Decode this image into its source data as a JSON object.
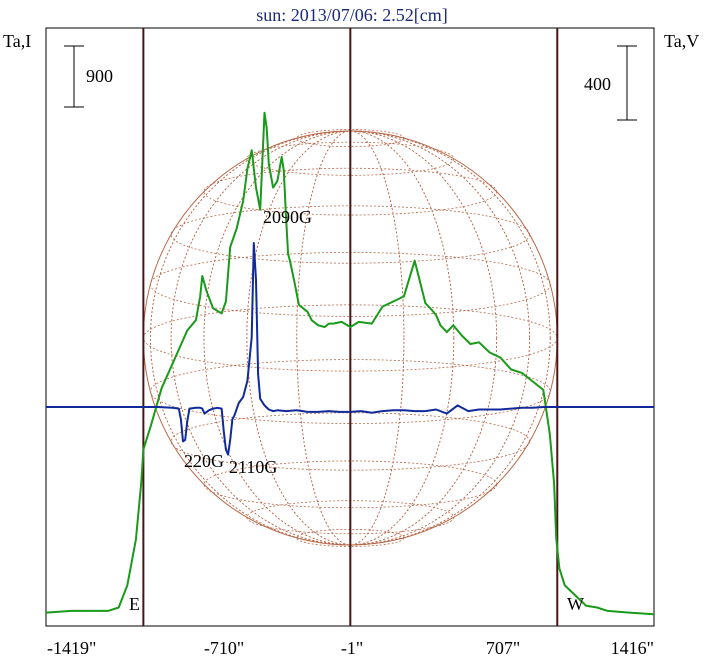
{
  "chart_data": {
    "type": "line",
    "title": "sun: 2013/07/06: 2.52[cm]",
    "left_axis_label": "Ta,I",
    "right_axis_label": "Ta,V",
    "x_ticks": [
      "-1419\"",
      "-710\"",
      "-1\"",
      "707\"",
      "1416\""
    ],
    "xlim": [
      -1419,
      1416
    ],
    "limb_markers": {
      "east": "E",
      "west": "W",
      "limb_positions": [
        -965,
        965
      ]
    },
    "scale_bars": {
      "intensity": "900",
      "polarization": "400"
    },
    "annotations": [
      "2090G",
      "2110G",
      "220G"
    ],
    "colors": {
      "intensity": "#1a9a1a",
      "polarization": "#102a9a",
      "disk": "#b8694a",
      "cursor_lines": "#4a1414",
      "title": "#1b2a78"
    },
    "series": [
      {
        "name": "Ta,I",
        "x": [
          -1419,
          -1300,
          -1200,
          -1130,
          -1080,
          -1040,
          -1000,
          -975,
          -965,
          -930,
          -880,
          -820,
          -760,
          -720,
          -700,
          -690,
          -670,
          -640,
          -600,
          -580,
          -560,
          -530,
          -500,
          -480,
          -460,
          -440,
          -420,
          -400,
          -390,
          -380,
          -360,
          -340,
          -320,
          -310,
          -300,
          -290,
          -280,
          -260,
          -240,
          -220,
          -200,
          -180,
          -150,
          -120,
          -100,
          -80,
          -40,
          0,
          40,
          100,
          150,
          200,
          250,
          300,
          350,
          380,
          400,
          420,
          450,
          480,
          520,
          560,
          600,
          650,
          700,
          750,
          800,
          850,
          900,
          930,
          950,
          960,
          975,
          1000,
          1050,
          1100,
          1150,
          1200,
          1300,
          1416
        ],
        "values": [
          0.02,
          0.03,
          0.03,
          0.03,
          0.05,
          0.18,
          0.45,
          0.78,
          0.98,
          1.12,
          1.34,
          1.51,
          1.68,
          1.74,
          1.88,
          2.0,
          1.91,
          1.81,
          1.78,
          1.85,
          2.17,
          2.28,
          2.44,
          2.63,
          2.74,
          2.52,
          2.39,
          2.96,
          2.87,
          2.66,
          2.52,
          2.56,
          2.7,
          2.62,
          2.35,
          2.13,
          2.08,
          1.96,
          1.83,
          1.81,
          1.79,
          1.74,
          1.71,
          1.7,
          1.72,
          1.72,
          1.73,
          1.7,
          1.73,
          1.72,
          1.82,
          1.85,
          1.88,
          2.09,
          1.84,
          1.8,
          1.77,
          1.71,
          1.67,
          1.71,
          1.65,
          1.6,
          1.61,
          1.55,
          1.52,
          1.45,
          1.43,
          1.38,
          1.33,
          1.07,
          0.78,
          0.46,
          0.28,
          0.18,
          0.12,
          0.06,
          0.05,
          0.03,
          0.02,
          0.01
        ]
      },
      {
        "name": "Ta,V",
        "x": [
          -1419,
          -1000,
          -965,
          -930,
          -900,
          -830,
          -800,
          -790,
          -780,
          -770,
          -760,
          -750,
          -720,
          -700,
          -690,
          -680,
          -660,
          -640,
          -620,
          -600,
          -590,
          -580,
          -570,
          -560,
          -550,
          -540,
          -520,
          -500,
          -480,
          -460,
          -450,
          -440,
          -430,
          -420,
          -400,
          -380,
          -360,
          -340,
          -300,
          -250,
          -200,
          -150,
          -100,
          -50,
          0,
          50,
          100,
          150,
          200,
          250,
          300,
          350,
          400,
          450,
          500,
          550,
          600,
          650,
          700,
          750,
          800,
          850,
          900,
          950,
          1000,
          1100,
          1200,
          1416
        ],
        "values": [
          0,
          0,
          0,
          0,
          0,
          -0.01,
          -0.02,
          -0.15,
          -0.42,
          -0.4,
          -0.17,
          -0.02,
          -0.01,
          -0.01,
          -0.02,
          -0.08,
          -0.04,
          -0.02,
          -0.01,
          -0.02,
          -0.3,
          -0.52,
          -0.58,
          -0.4,
          -0.15,
          -0.1,
          0.05,
          0.12,
          0.32,
          0.85,
          2.0,
          1.55,
          0.4,
          0.1,
          0.02,
          -0.03,
          -0.05,
          -0.04,
          -0.05,
          -0.04,
          -0.06,
          -0.06,
          -0.05,
          -0.06,
          -0.06,
          -0.05,
          -0.07,
          -0.05,
          -0.04,
          -0.04,
          -0.05,
          -0.05,
          -0.03,
          -0.08,
          0.02,
          -0.05,
          -0.03,
          -0.03,
          -0.03,
          -0.02,
          -0.01,
          -0.01,
          0,
          0,
          0,
          0,
          0,
          0
        ]
      }
    ]
  }
}
